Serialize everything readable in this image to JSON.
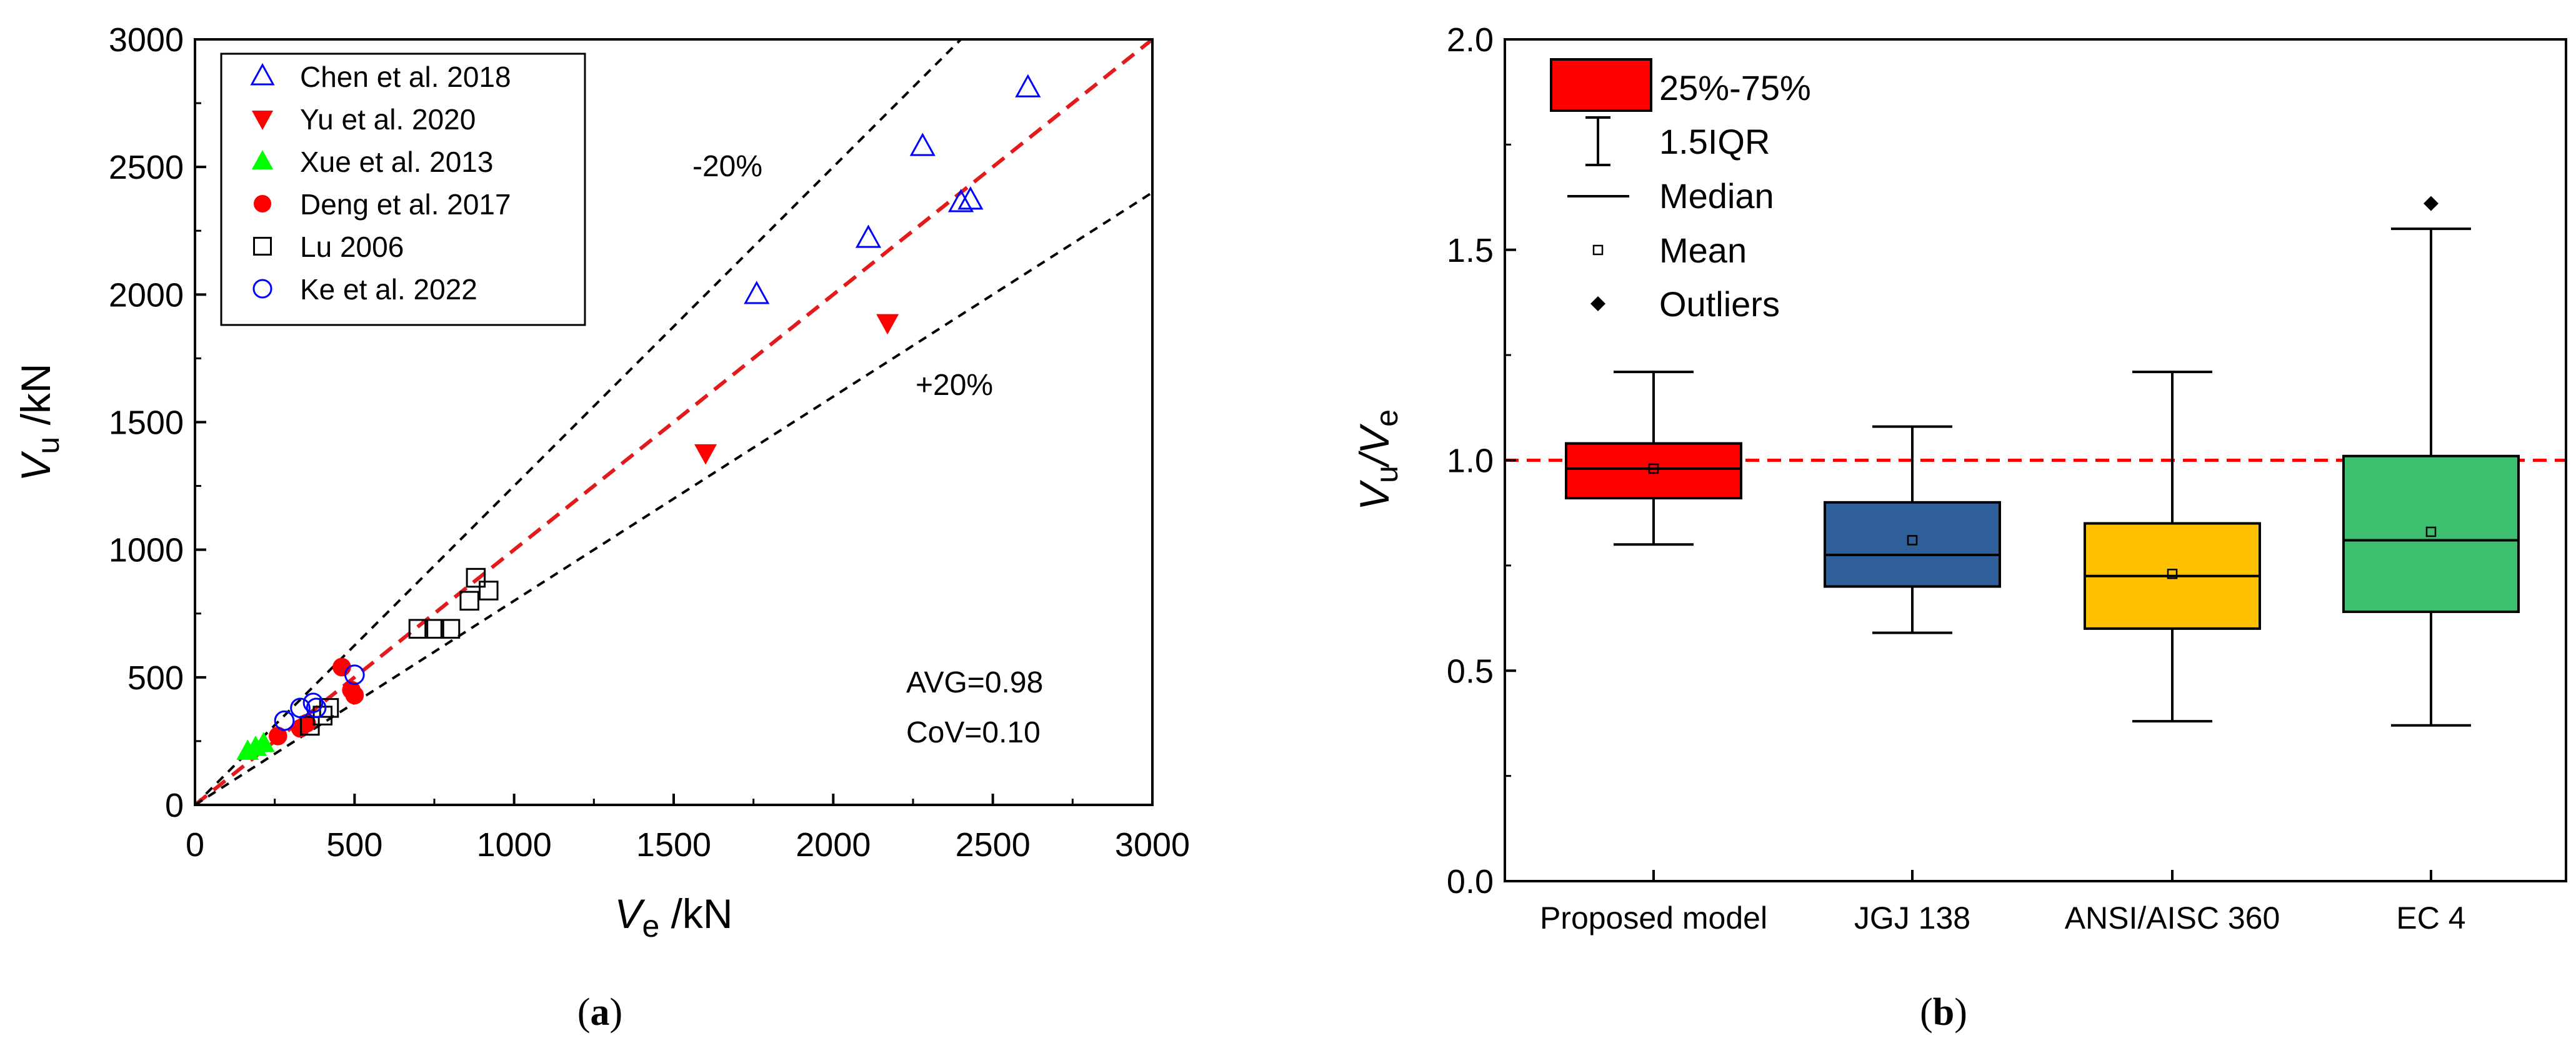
{
  "chart_data": [
    {
      "type": "scatter",
      "panel_label": "a",
      "xlabel": "V",
      "xlabel_sub": "e",
      "xlabel_unit": " /kN",
      "ylabel": "V",
      "ylabel_sub": "u",
      "ylabel_unit": " /kN",
      "xlim": [
        0,
        3000
      ],
      "ylim": [
        0,
        3000
      ],
      "xticks": [
        0,
        500,
        1000,
        1500,
        2000,
        2500,
        3000
      ],
      "yticks": [
        0,
        500,
        1000,
        1500,
        2000,
        2500,
        3000
      ],
      "reference_lines": [
        {
          "name": "-20%",
          "label": "-20%",
          "slope": 1.25,
          "color": "#000000",
          "style": "dashed"
        },
        {
          "name": "equality",
          "label": "",
          "slope": 1.0,
          "color": "#e31a1c",
          "style": "dashed"
        },
        {
          "name": "+20%",
          "label": "+20%",
          "slope": 0.8,
          "color": "#000000",
          "style": "dashed"
        }
      ],
      "series": [
        {
          "name": "Chen et al. 2018",
          "marker": "triangle-open",
          "color": "#0000ff",
          "x": [
            1760,
            2110,
            2280,
            2400,
            2430,
            2610
          ],
          "y": [
            2000,
            2220,
            2580,
            2360,
            2370,
            2810
          ]
        },
        {
          "name": "Yu et al. 2020",
          "marker": "triangle-down-filled",
          "color": "#ff0000",
          "x": [
            1600,
            2170
          ],
          "y": [
            1380,
            1890
          ]
        },
        {
          "name": "Xue et al. 2013",
          "marker": "triangle-filled",
          "color": "#00ff00",
          "x": [
            165,
            190,
            215
          ],
          "y": [
            210,
            225,
            240
          ]
        },
        {
          "name": "Deng et al. 2017",
          "marker": "circle-filled",
          "color": "#ff0000",
          "x": [
            260,
            330,
            350,
            460,
            490,
            500
          ],
          "y": [
            270,
            300,
            320,
            540,
            450,
            430
          ]
        },
        {
          "name": "Lu 2006",
          "marker": "square-open",
          "color": "#000000",
          "x": [
            360,
            400,
            420,
            700,
            750,
            800,
            860,
            880,
            920
          ],
          "y": [
            310,
            350,
            380,
            690,
            690,
            690,
            800,
            890,
            840
          ]
        },
        {
          "name": "Ke et al. 2022",
          "marker": "circle-open",
          "color": "#0000ff",
          "x": [
            280,
            330,
            370,
            380,
            500
          ],
          "y": [
            330,
            380,
            400,
            380,
            510
          ]
        }
      ],
      "annotations": [
        "AVG=0.98",
        "CoV=0.10"
      ]
    },
    {
      "type": "box",
      "panel_label": "b",
      "ylabel": "V",
      "ylabel_sub": "u",
      "ylabel_mid": "/V",
      "ylabel_sub2": "e",
      "ylim": [
        0.0,
        2.0
      ],
      "yticks": [
        "0.0",
        "0.5",
        "1.0",
        "1.5",
        "2.0"
      ],
      "reference_line": 1.0,
      "reference_color": "#ff0000",
      "legend": [
        "25%-75%",
        "1.5IQR",
        "Median",
        "Mean",
        "Outliers"
      ],
      "boxes": [
        {
          "label": "Proposed model",
          "color": "#ff0000",
          "whisker_low": 0.8,
          "q1": 0.91,
          "median": 0.98,
          "q3": 1.04,
          "whisker_high": 1.21,
          "mean": 0.98,
          "outliers": []
        },
        {
          "label": "JGJ 138",
          "color": "#2f5f98",
          "whisker_low": 0.59,
          "q1": 0.7,
          "median": 0.775,
          "q3": 0.9,
          "whisker_high": 1.08,
          "mean": 0.81,
          "outliers": []
        },
        {
          "label": "ANSI/AISC 360",
          "color": "#ffc000",
          "whisker_low": 0.38,
          "q1": 0.6,
          "median": 0.725,
          "q3": 0.85,
          "whisker_high": 1.21,
          "mean": 0.73,
          "outliers": []
        },
        {
          "label": "EC 4",
          "color": "#3cc070",
          "whisker_low": 0.37,
          "q1": 0.64,
          "median": 0.81,
          "q3": 1.01,
          "whisker_high": 1.55,
          "mean": 0.83,
          "outliers": [
            1.61
          ]
        }
      ]
    }
  ]
}
